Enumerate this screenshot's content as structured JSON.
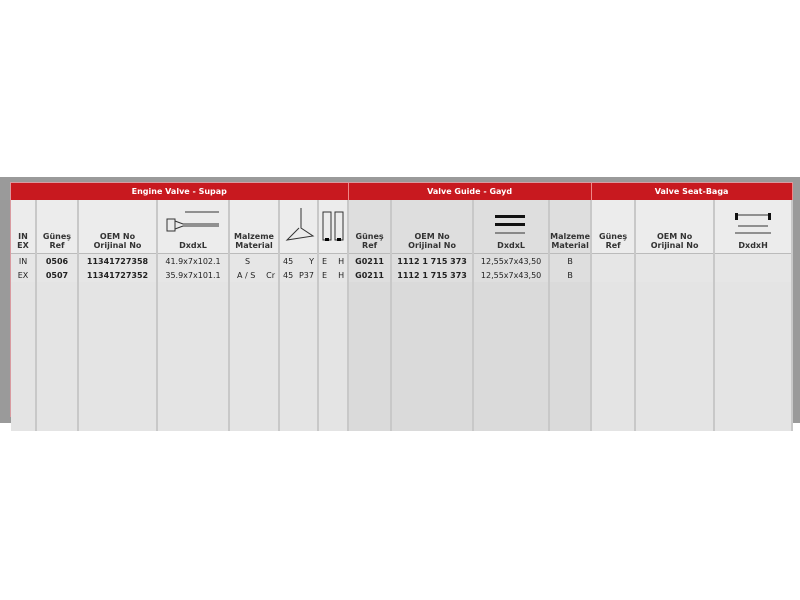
{
  "sections": {
    "engine_valve": "Engine Valve - Supap",
    "valve_guide": "Valve Guide - Gayd",
    "valve_seat": "Valve Seat-Baga"
  },
  "headers": {
    "in_ex": "IN\nEX",
    "gunes_ref": "Güneş\nRef",
    "oem_no": "OEM No\nOrijinal No",
    "dxdxl": "DxdxL",
    "malzeme": "Malzeme\nMaterial",
    "dxdxh": "DxdxH"
  },
  "rows": [
    {
      "type": "IN",
      "ref": "0506",
      "oem": "11341727358",
      "dim": "41.9x7x102.1",
      "mat": "S",
      "mat2": "",
      "angle": "45",
      "coat": "Y",
      "e": "E",
      "h": "H",
      "guide_ref": "G0211",
      "guide_oem": "1112 1 715 373",
      "guide_dim": "12,55x7x43,50",
      "guide_mat": "B"
    },
    {
      "type": "EX",
      "ref": "0507",
      "oem": "11341727352",
      "dim": "35.9x7x101.1",
      "mat": "A / S",
      "mat2": "Cr",
      "angle": "45",
      "coat": "P37",
      "e": "E",
      "h": "H",
      "guide_ref": "G0211",
      "guide_oem": "1112 1 715 373",
      "guide_dim": "12,55x7x43,50",
      "guide_mat": "B"
    }
  ],
  "colors": {
    "header_red": "#c8191f"
  }
}
